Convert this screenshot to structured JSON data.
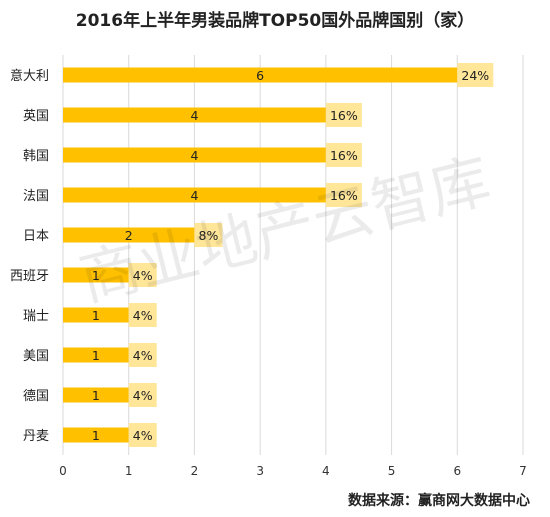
{
  "chart_data": {
    "type": "bar",
    "orientation": "horizontal",
    "title": "2016年上半年男装品牌TOP50国外品牌国别（家）",
    "categories": [
      "意大利",
      "英国",
      "韩国",
      "法国",
      "日本",
      "西班牙",
      "瑞士",
      "美国",
      "德国",
      "丹麦"
    ],
    "values": [
      6,
      4,
      4,
      4,
      2,
      1,
      1,
      1,
      1,
      1
    ],
    "percent_labels": [
      "24%",
      "16%",
      "16%",
      "16%",
      "8%",
      "4%",
      "4%",
      "4%",
      "4%",
      "4%"
    ],
    "xlim": [
      0,
      7
    ],
    "xticks": [
      0,
      1,
      2,
      3,
      4,
      5,
      6,
      7
    ],
    "grid": true,
    "bar_color": "#FFC000",
    "label_bg_color": "#FFE699",
    "grid_color": "#D9D9D9",
    "source": "数据来源：赢商网大数据中心",
    "watermark": "商业地产云智库"
  }
}
